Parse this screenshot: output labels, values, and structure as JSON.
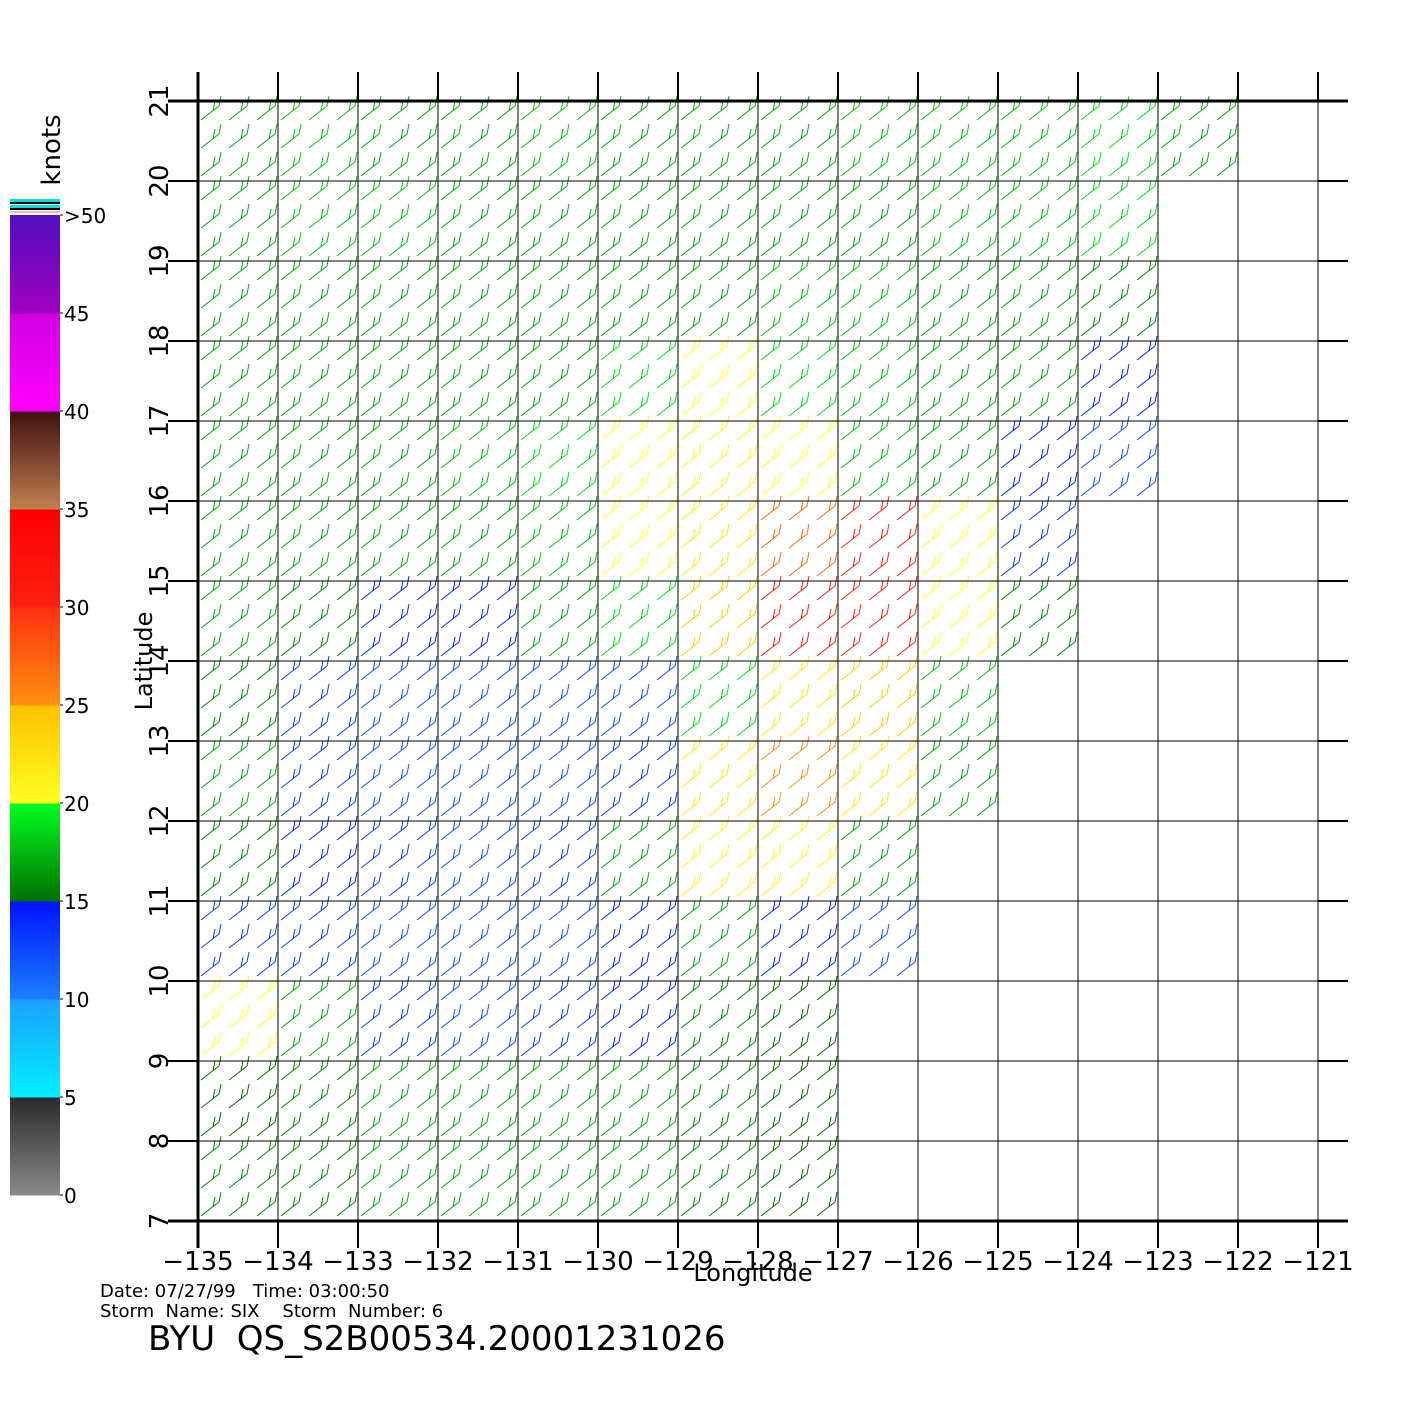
{
  "chart_data": {
    "type": "wind-field",
    "xlabel": "Longitude",
    "ylabel": "Latitude",
    "xlim": [
      -135,
      -121
    ],
    "ylim": [
      7,
      21
    ],
    "xticks": [
      {
        "value": -135,
        "label": "−135"
      },
      {
        "value": -134,
        "label": "−134"
      },
      {
        "value": -133,
        "label": "−133"
      },
      {
        "value": -132,
        "label": "−132"
      },
      {
        "value": -131,
        "label": "−131"
      },
      {
        "value": -130,
        "label": "−130"
      },
      {
        "value": -129,
        "label": "−129"
      },
      {
        "value": -128,
        "label": "−128"
      },
      {
        "value": -127,
        "label": "−127"
      },
      {
        "value": -126,
        "label": "−126"
      },
      {
        "value": -125,
        "label": "−125"
      },
      {
        "value": -124,
        "label": "−124"
      },
      {
        "value": -123,
        "label": "−123"
      },
      {
        "value": -122,
        "label": "−122"
      },
      {
        "value": -121,
        "label": "−121"
      }
    ],
    "yticks": [
      7,
      8,
      9,
      10,
      11,
      12,
      13,
      14,
      15,
      16,
      17,
      18,
      19,
      20,
      21
    ],
    "grid": true,
    "x": [
      -134.5,
      -133.5,
      -132.5,
      -131.5,
      -130.5,
      -129.5,
      -128.5,
      -127.5,
      -126.5,
      -125.5,
      -124.5,
      -123.5,
      -122.5,
      -121.5
    ],
    "y": [
      20.5,
      19.5,
      18.5,
      17.5,
      16.5,
      15.5,
      14.5,
      13.5,
      12.5,
      11.5,
      10.5,
      9.5,
      8.5,
      7.5
    ],
    "speed": [
      [
        17,
        18,
        17,
        17,
        18,
        17,
        17,
        17,
        18,
        18,
        18,
        19,
        17,
        null
      ],
      [
        17,
        18,
        18,
        17,
        17,
        17,
        17,
        17,
        17,
        18,
        18,
        19,
        null,
        null
      ],
      [
        17,
        17,
        17,
        17,
        17,
        17,
        17,
        18,
        18,
        17,
        17,
        16,
        null,
        null
      ],
      [
        17,
        17,
        17,
        17,
        17,
        19,
        20,
        19,
        18,
        17,
        17,
        14,
        null,
        null
      ],
      [
        17,
        17,
        17,
        18,
        19,
        20,
        21,
        20,
        18,
        17,
        14,
        12,
        null,
        null
      ],
      [
        17,
        17,
        17,
        17,
        18,
        20,
        22,
        27,
        30,
        20,
        13,
        null,
        null,
        null
      ],
      [
        17,
        16,
        14,
        14,
        17,
        19,
        24,
        31,
        30,
        20,
        16,
        null,
        null,
        null
      ],
      [
        16,
        13,
        12,
        12,
        12,
        12,
        19,
        22,
        24,
        18,
        null,
        null,
        null,
        null
      ],
      [
        17,
        13,
        12,
        12,
        12,
        13,
        22,
        25,
        22,
        17,
        null,
        null,
        null,
        null
      ],
      [
        16,
        14,
        13,
        12,
        13,
        17,
        21,
        21,
        17,
        null,
        null,
        null,
        null,
        null
      ],
      [
        13,
        13,
        12,
        12,
        12,
        14,
        17,
        14,
        12,
        null,
        null,
        null,
        null,
        null
      ],
      [
        20,
        17,
        13,
        12,
        13,
        14,
        16,
        15,
        null,
        null,
        null,
        null,
        null,
        null
      ],
      [
        15,
        16,
        17,
        17,
        17,
        17,
        16,
        15,
        null,
        null,
        null,
        null,
        null,
        null
      ],
      [
        16,
        16,
        17,
        17,
        17,
        17,
        16,
        15,
        null,
        null,
        null,
        null,
        null,
        null
      ]
    ],
    "colorbar": {
      "title": "knots",
      "lim": [
        0,
        50
      ],
      "ticks": [
        0,
        5,
        10,
        15,
        20,
        25,
        30,
        35,
        40,
        45,
        {
          "value": 50,
          "label": ">50"
        }
      ],
      "segments": [
        [
          "#8a8a8a",
          "#2a2a2a"
        ],
        [
          "#00f0ff",
          "#1aa0ff"
        ],
        [
          "#1a80ff",
          "#0010ff"
        ],
        [
          "#007000",
          "#00ff20"
        ],
        [
          "#ffff20",
          "#ffc000"
        ],
        [
          "#ff9010",
          "#ff3010"
        ],
        [
          "#ff2010",
          "#ff0000"
        ],
        [
          "#c08050",
          "#401010"
        ],
        [
          "#ff00ff",
          "#d000e0"
        ],
        [
          "#a000c0",
          "#5010c0"
        ]
      ]
    },
    "info": {
      "date_line": "Date: 07/27/99   Time: 03:00:50",
      "storm_line": "Storm  Name: SIX    Storm  Number: 6",
      "file": "BYU  QS_S2B00534.20001231026"
    }
  }
}
